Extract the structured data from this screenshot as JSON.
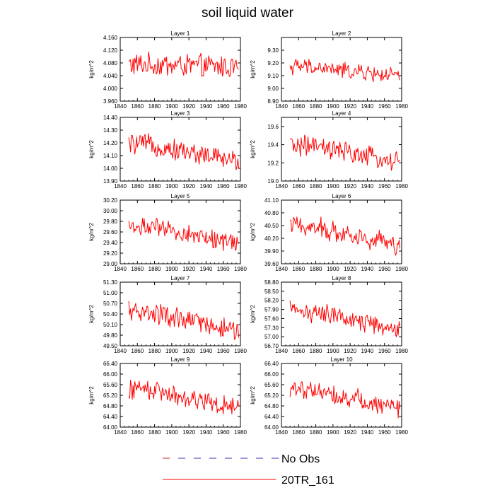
{
  "title": "soil liquid water",
  "legend": [
    {
      "label": "No Obs",
      "style": "dashed",
      "color": "#3333bb",
      "accent": "#cc2222"
    },
    {
      "label": "20TR_161",
      "style": "solid",
      "color": "#ff0000"
    }
  ],
  "chart_data": [
    {
      "type": "line",
      "title": "Layer 1",
      "ylabel": "kg/m^2",
      "xlim": [
        1840,
        1980
      ],
      "ylim": [
        3.96,
        4.16
      ],
      "xticks": [
        "1840",
        "1860",
        "1880",
        "1900",
        "1920",
        "1940",
        "1960",
        "1980"
      ],
      "yticks": [
        "3.960",
        "4.000",
        "4.040",
        "4.080",
        "4.120",
        "4.160"
      ],
      "series": [
        {
          "start": 1850,
          "end": 1978,
          "mean": 4.075,
          "amp": 0.032,
          "trend": -0.01,
          "color": "#ff0000"
        }
      ]
    },
    {
      "type": "line",
      "title": "Layer 2",
      "ylabel": "kg/m^2",
      "xlim": [
        1840,
        1980
      ],
      "ylim": [
        8.9,
        9.4
      ],
      "xticks": [
        "1840",
        "1860",
        "1880",
        "1900",
        "1920",
        "1940",
        "1960",
        "1980"
      ],
      "yticks": [
        "8.90",
        "9.00",
        "9.10",
        "9.20",
        "9.30"
      ],
      "series": [
        {
          "start": 1850,
          "end": 1978,
          "mean": 9.17,
          "amp": 0.055,
          "trend": -0.09,
          "color": "#ff0000"
        }
      ]
    },
    {
      "type": "line",
      "title": "Layer 3",
      "ylabel": "kg/m^2",
      "xlim": [
        1840,
        1980
      ],
      "ylim": [
        13.9,
        14.4
      ],
      "xticks": [
        "1840",
        "1860",
        "1880",
        "1900",
        "1920",
        "1940",
        "1960",
        "1980"
      ],
      "yticks": [
        "13.90",
        "14.00",
        "14.10",
        "14.20",
        "14.30",
        "14.40"
      ],
      "series": [
        {
          "start": 1850,
          "end": 1978,
          "mean": 14.19,
          "amp": 0.07,
          "trend": -0.16,
          "color": "#ff0000"
        }
      ]
    },
    {
      "type": "line",
      "title": "Layer 4",
      "ylabel": "kg/m^2",
      "xlim": [
        1840,
        1980
      ],
      "ylim": [
        19.0,
        19.7
      ],
      "xticks": [
        "1840",
        "1860",
        "1880",
        "1900",
        "1920",
        "1940",
        "1960",
        "1980"
      ],
      "yticks": [
        "19.0",
        "19.2",
        "19.4",
        "19.6"
      ],
      "series": [
        {
          "start": 1850,
          "end": 1978,
          "mean": 19.39,
          "amp": 0.1,
          "trend": -0.22,
          "color": "#ff0000"
        }
      ]
    },
    {
      "type": "line",
      "title": "Layer 5",
      "ylabel": "kg/m^2",
      "xlim": [
        1840,
        1980
      ],
      "ylim": [
        29.0,
        30.2
      ],
      "xticks": [
        "1840",
        "1860",
        "1880",
        "1900",
        "1920",
        "1940",
        "1960",
        "1980"
      ],
      "yticks": [
        "29.00",
        "29.20",
        "29.40",
        "29.60",
        "29.80",
        "30.00",
        "30.20"
      ],
      "series": [
        {
          "start": 1850,
          "end": 1978,
          "mean": 29.7,
          "amp": 0.16,
          "trend": -0.38,
          "color": "#ff0000"
        }
      ]
    },
    {
      "type": "line",
      "title": "Layer 6",
      "ylabel": "kg/m^2",
      "xlim": [
        1840,
        1980
      ],
      "ylim": [
        39.6,
        41.1
      ],
      "xticks": [
        "1840",
        "1860",
        "1880",
        "1900",
        "1920",
        "1940",
        "1960",
        "1980"
      ],
      "yticks": [
        "39.60",
        "39.90",
        "40.20",
        "40.50",
        "40.80",
        "41.10"
      ],
      "series": [
        {
          "start": 1850,
          "end": 1978,
          "mean": 40.5,
          "amp": 0.22,
          "trend": -0.55,
          "color": "#ff0000"
        }
      ]
    },
    {
      "type": "line",
      "title": "Layer 7",
      "ylabel": "kg/m^2",
      "xlim": [
        1840,
        1980
      ],
      "ylim": [
        49.5,
        51.3
      ],
      "xticks": [
        "1840",
        "1860",
        "1880",
        "1900",
        "1920",
        "1940",
        "1960",
        "1980"
      ],
      "yticks": [
        "49.50",
        "49.80",
        "50.10",
        "50.40",
        "50.70",
        "51.00",
        "51.30"
      ],
      "series": [
        {
          "start": 1850,
          "end": 1978,
          "mean": 50.45,
          "amp": 0.27,
          "trend": -0.65,
          "color": "#ff0000"
        }
      ]
    },
    {
      "type": "line",
      "title": "Layer 8",
      "ylabel": "kg/m^2",
      "xlim": [
        1840,
        1980
      ],
      "ylim": [
        56.7,
        58.8
      ],
      "xticks": [
        "1840",
        "1860",
        "1880",
        "1900",
        "1920",
        "1940",
        "1960",
        "1980"
      ],
      "yticks": [
        "56.70",
        "57.00",
        "57.30",
        "57.60",
        "57.90",
        "58.20",
        "58.50",
        "58.80"
      ],
      "series": [
        {
          "start": 1850,
          "end": 1978,
          "mean": 57.85,
          "amp": 0.3,
          "trend": -0.75,
          "color": "#ff0000"
        }
      ]
    },
    {
      "type": "line",
      "title": "Layer 9",
      "ylabel": "kg/m^2",
      "xlim": [
        1840,
        1980
      ],
      "ylim": [
        64.0,
        66.4
      ],
      "xticks": [
        "1840",
        "1860",
        "1880",
        "1900",
        "1920",
        "1940",
        "1960",
        "1980"
      ],
      "yticks": [
        "64.00",
        "64.40",
        "64.80",
        "65.20",
        "65.60",
        "66.00",
        "66.40"
      ],
      "series": [
        {
          "start": 1850,
          "end": 1978,
          "mean": 65.45,
          "amp": 0.33,
          "trend": -0.85,
          "color": "#ff0000"
        }
      ]
    },
    {
      "type": "line",
      "title": "Layer 10",
      "ylabel": "kg/m^2",
      "xlim": [
        1840,
        1980
      ],
      "ylim": [
        64.0,
        66.4
      ],
      "xticks": [
        "1840",
        "1860",
        "1880",
        "1900",
        "1920",
        "1940",
        "1960",
        "1980"
      ],
      "yticks": [
        "64.00",
        "64.40",
        "64.80",
        "65.20",
        "65.60",
        "66.00",
        "66.40"
      ],
      "series": [
        {
          "start": 1850,
          "end": 1978,
          "mean": 65.45,
          "amp": 0.33,
          "trend": -0.85,
          "color": "#ff0000"
        }
      ]
    }
  ]
}
